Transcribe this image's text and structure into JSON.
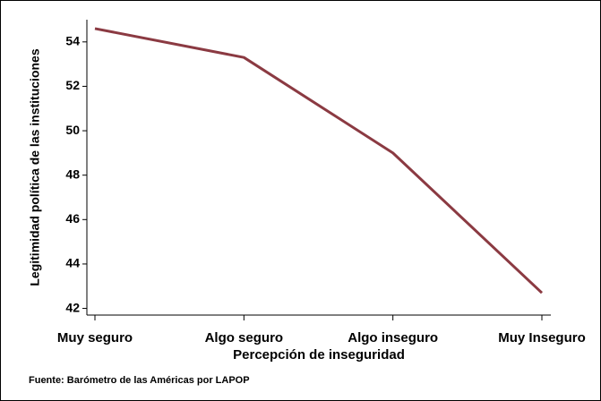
{
  "chart_data": {
    "type": "line",
    "categories": [
      "Muy seguro",
      "Algo seguro",
      "Algo inseguro",
      "Muy Inseguro"
    ],
    "series": [
      {
        "name": "Legitimidad política de las instituciones",
        "color": "#8b3a42",
        "values": [
          54.6,
          53.3,
          49.0,
          42.7
        ]
      }
    ],
    "ylabel": "Legitimidad política de las instituciones",
    "xlabel": "Percepción de inseguridad",
    "source": "Fuente: Barómetro de las Américas por LAPOP",
    "ylim": [
      41.7,
      55
    ],
    "yticks": [
      42,
      44,
      46,
      48,
      50,
      52,
      54
    ],
    "grid": false
  }
}
